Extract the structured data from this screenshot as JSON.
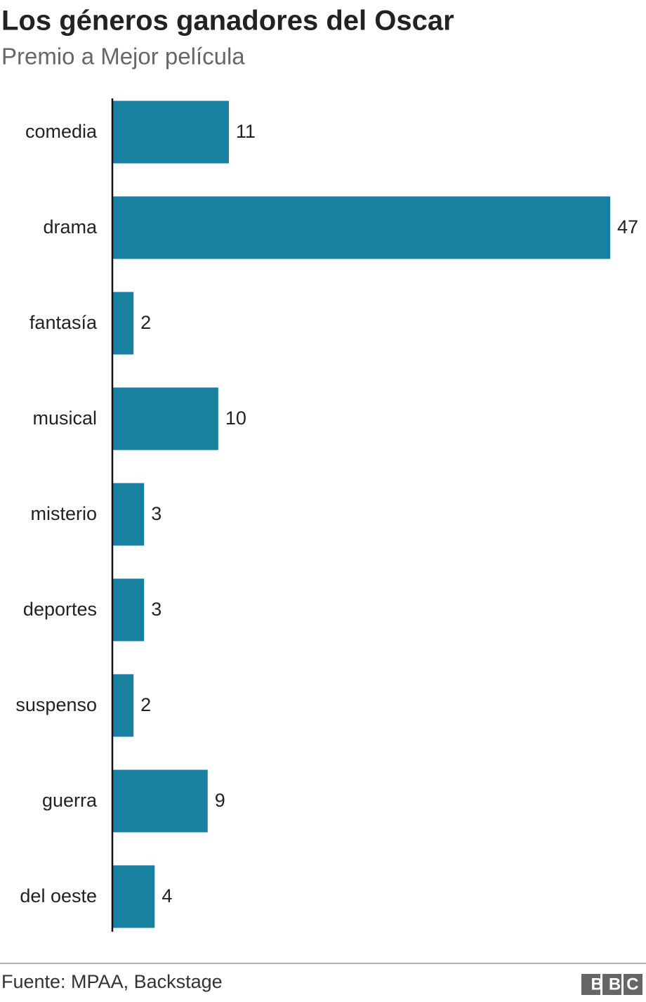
{
  "chart_data": {
    "type": "bar",
    "orientation": "horizontal",
    "title": "Los géneros ganadores del Oscar",
    "subtitle": "Premio a Mejor película",
    "categories": [
      "comedia",
      "drama",
      "fantasía",
      "musical",
      "misterio",
      "deportes",
      "suspenso",
      "guerra",
      "del oeste"
    ],
    "values": [
      11,
      47,
      2,
      10,
      3,
      3,
      2,
      9,
      4
    ],
    "color": "#17819f",
    "source": "Fuente: MPAA, Backstage",
    "logo": "BBC"
  }
}
